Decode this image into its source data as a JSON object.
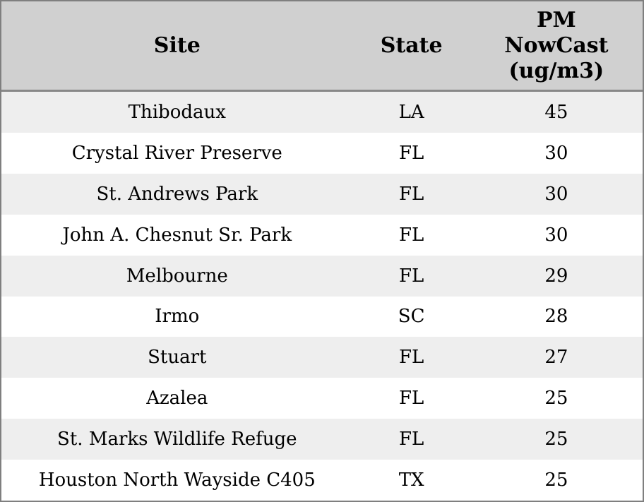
{
  "chart_data": {
    "type": "table",
    "title": "",
    "columns": [
      "Site",
      "State",
      "PM NowCast (ug/m3)"
    ],
    "rows": [
      [
        "Thibodaux",
        "LA",
        45
      ],
      [
        "Crystal River Preserve",
        "FL",
        30
      ],
      [
        "St. Andrews Park",
        "FL",
        30
      ],
      [
        "John A. Chesnut Sr. Park",
        "FL",
        30
      ],
      [
        "Melbourne",
        "FL",
        29
      ],
      [
        "Irmo",
        "SC",
        28
      ],
      [
        "Stuart",
        "FL",
        27
      ],
      [
        "Azalea",
        "FL",
        25
      ],
      [
        "St. Marks Wildlife Refuge",
        "FL",
        25
      ],
      [
        "Houston North Wayside C405",
        "TX",
        25
      ]
    ],
    "layout": {
      "striped_rows": true,
      "header_align": "center",
      "cell_align": "center"
    }
  },
  "colors": {
    "header_bg": "#d0d0d0",
    "row_alt_bg": "#eeeeee",
    "row_bg": "#ffffff",
    "border": "#7f7f7f",
    "separator": "#888888",
    "text": "#000000"
  }
}
